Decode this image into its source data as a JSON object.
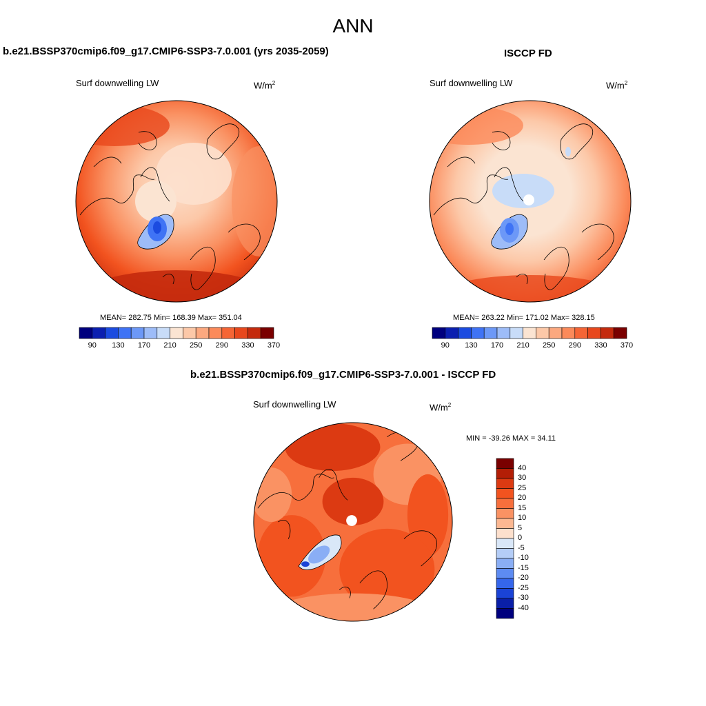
{
  "figure_title": "ANN",
  "panels": [
    {
      "title": "b.e21.BSSP370cmip6.f09_g17.CMIP6-SSP3-7.0.001 (yrs 2035-2059)",
      "variable": "Surf downwelling LW",
      "units_base": "W/m",
      "units_exp": "2",
      "stats": "MEAN= 282.75  Min= 168.39  Max= 351.04"
    },
    {
      "title": "ISCCP FD",
      "variable": "Surf downwelling LW",
      "units_base": "W/m",
      "units_exp": "2",
      "stats": "MEAN= 263.22  Min= 171.02  Max= 328.15"
    },
    {
      "title": "b.e21.BSSP370cmip6.f09_g17.CMIP6-SSP3-7.0.001 - ISCCP FD",
      "variable": "Surf downwelling LW",
      "units_base": "W/m",
      "units_exp": "2",
      "stats": "MIN = -39.26 MAX =  34.11"
    }
  ],
  "colorbar_abs": {
    "ticks": [
      "90",
      "130",
      "170",
      "210",
      "250",
      "290",
      "330",
      "370"
    ],
    "colors": [
      "#00007e",
      "#0b1fb0",
      "#1b4be0",
      "#3f73f5",
      "#6c98f7",
      "#9dbcf8",
      "#c8dcf8",
      "#fbe4d2",
      "#fcc8a8",
      "#fca87f",
      "#fb8a5a",
      "#f56535",
      "#e8471c",
      "#c42a0d",
      "#7a0000"
    ]
  },
  "colorbar_diff": {
    "ticks": [
      "40",
      "30",
      "25",
      "20",
      "15",
      "10",
      "5",
      "0",
      "-5",
      "-10",
      "-15",
      "-20",
      "-25",
      "-30",
      "-40"
    ],
    "colors": [
      "#7a0000",
      "#b31e06",
      "#dc3a12",
      "#f2531f",
      "#f76f3c",
      "#fa9263",
      "#fcb892",
      "#fde0cd",
      "#d9e7f8",
      "#b4cdf7",
      "#8aaef5",
      "#5d8bf2",
      "#3566eb",
      "#1a43d6",
      "#0a1fa8",
      "#00007e"
    ]
  }
}
